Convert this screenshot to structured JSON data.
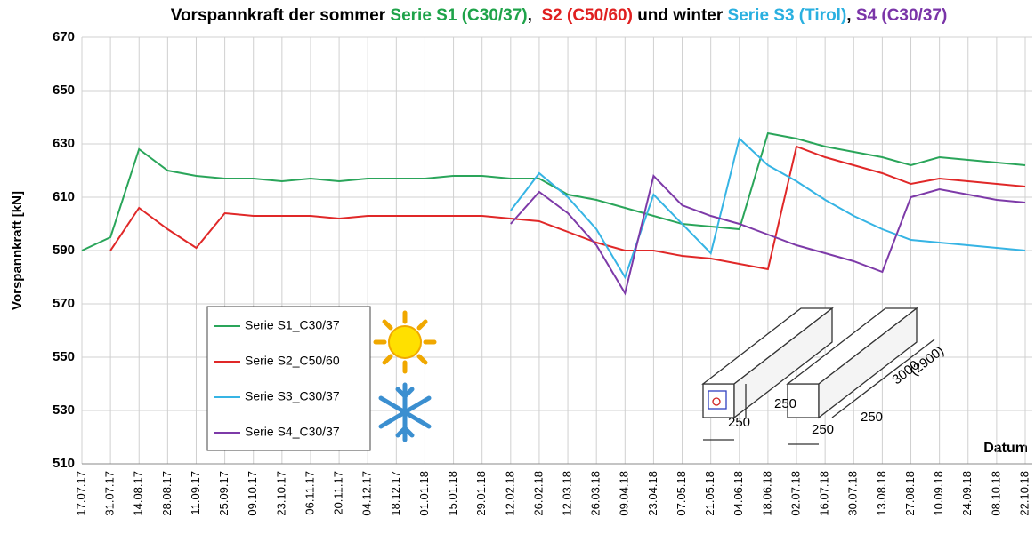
{
  "chart_data": {
    "type": "line",
    "title_parts": [
      {
        "text": "Vorspannkraft der sommer ",
        "color": "#000000"
      },
      {
        "text": "Serie S1 (C30/37)",
        "color": "#1fa34a"
      },
      {
        "text": ",  ",
        "color": "#000000"
      },
      {
        "text": "S2 (C50/60)",
        "color": "#e02020"
      },
      {
        "text": " und winter ",
        "color": "#000000"
      },
      {
        "text": "Serie S3 (Tirol)",
        "color": "#2ab0e0"
      },
      {
        "text": ", ",
        "color": "#000000"
      },
      {
        "text": "S4 (C30/37)",
        "color": "#7a35a8"
      }
    ],
    "y_label": "Vorspannkraft [kN]",
    "x_label": "Datum",
    "categories": [
      "17.07.17",
      "31.07.17",
      "14.08.17",
      "28.08.17",
      "11.09.17",
      "25.09.17",
      "09.10.17",
      "23.10.17",
      "06.11.17",
      "20.11.17",
      "04.12.17",
      "18.12.17",
      "01.01.18",
      "15.01.18",
      "29.01.18",
      "12.02.18",
      "26.02.18",
      "12.03.18",
      "26.03.18",
      "09.04.18",
      "23.04.18",
      "07.05.18",
      "21.05.18",
      "04.06.18",
      "18.06.18",
      "02.07.18",
      "16.07.18",
      "30.07.18",
      "13.08.18",
      "27.08.18",
      "10.09.18",
      "24.09.18",
      "08.10.18",
      "22.10.18"
    ],
    "series": [
      {
        "name": "Serie S1_C30/37",
        "color": "#2aa55a",
        "values": [
          590,
          595,
          628,
          620,
          618,
          617,
          617,
          616,
          617,
          616,
          617,
          617,
          617,
          618,
          618,
          617,
          617,
          611,
          609,
          606,
          603,
          600,
          599,
          598,
          634,
          632,
          629,
          627,
          625,
          622,
          625,
          624,
          623,
          622
        ]
      },
      {
        "name": "Serie S2_C50/60",
        "color": "#e02828",
        "values": [
          null,
          590,
          606,
          598,
          591,
          604,
          603,
          603,
          603,
          602,
          603,
          603,
          603,
          603,
          603,
          602,
          601,
          597,
          593,
          590,
          590,
          588,
          587,
          585,
          583,
          629,
          625,
          622,
          619,
          615,
          617,
          616,
          615,
          614
        ]
      },
      {
        "name": "Serie S3_C30/37",
        "color": "#36b4e4",
        "values": [
          null,
          null,
          null,
          null,
          null,
          null,
          null,
          null,
          null,
          null,
          null,
          null,
          null,
          null,
          null,
          605,
          619,
          610,
          598,
          580,
          611,
          600,
          589,
          632,
          622,
          616,
          609,
          603,
          598,
          594,
          593,
          592,
          591,
          590
        ]
      },
      {
        "name": "Serie S4_C30/37",
        "color": "#7d3aa8",
        "values": [
          null,
          null,
          null,
          null,
          null,
          null,
          null,
          null,
          null,
          null,
          null,
          null,
          null,
          null,
          null,
          600,
          612,
          604,
          592,
          574,
          618,
          607,
          603,
          600,
          596,
          592,
          589,
          586,
          582,
          610,
          613,
          611,
          609,
          608
        ]
      }
    ],
    "ylim": [
      510,
      670
    ],
    "yticks": [
      510,
      530,
      550,
      570,
      590,
      610,
      630,
      650,
      670
    ],
    "grid": true,
    "annotations": [
      "250",
      "250",
      "250",
      "250",
      "3000",
      "(2900)"
    ]
  }
}
